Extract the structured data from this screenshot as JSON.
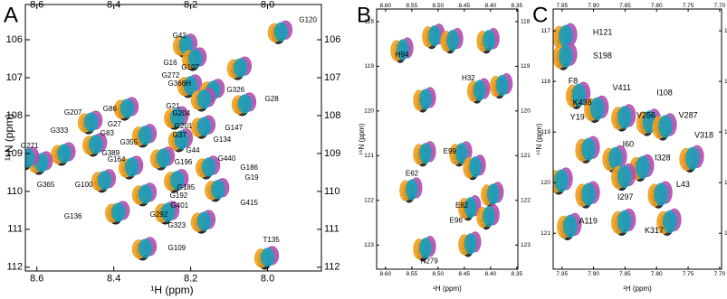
{
  "chart_data": [
    {
      "type": "scatter",
      "panel": "A",
      "x_label": "¹H (ppm)",
      "y_label": "¹⁵N (ppm)",
      "xlim": [
        8.63,
        7.86
      ],
      "ylim": [
        112.1,
        105.07
      ],
      "x_inverted": true,
      "y_inverted": true,
      "xticks": [
        8.6,
        8.4,
        8.2,
        {
          "value": 8,
          "label": "8.0"
        }
      ],
      "yticks": [
        106,
        107,
        108,
        109,
        110,
        111,
        112
      ],
      "colors": [
        "#1a1a1a",
        "#f0a020",
        "#b050b0",
        "#1aa0b8"
      ],
      "peaks": {
        "x": [
          7.965,
          8.212,
          8.188,
          8.071,
          8.2,
          8.141,
          8.059,
          8.165,
          8.365,
          8.459,
          8.235,
          8.165,
          8.224,
          8.318,
          8.447,
          8.529,
          8.588,
          8.271,
          8.353,
          8.153,
          8.424,
          8.235,
          8.129,
          8.318,
          8.388,
          8.259,
          8.165,
          8.318,
          8.0,
          8.624
        ],
        "y": [
          105.79,
          106.14,
          106.5,
          106.74,
          107.21,
          107.33,
          107.69,
          107.57,
          107.81,
          108.17,
          108.05,
          108.29,
          108.64,
          108.52,
          108.76,
          109.0,
          109.24,
          109.12,
          109.36,
          109.36,
          109.71,
          109.71,
          109.95,
          110.07,
          110.55,
          110.55,
          110.79,
          111.5,
          111.74,
          109.12
        ]
      },
      "annotations": [
        {
          "text": "G120",
          "x": 7.918,
          "y": 105.48
        },
        {
          "text": "G42",
          "x": 8.247,
          "y": 105.9
        },
        {
          "text": "G16",
          "x": 8.271,
          "y": 106.62
        },
        {
          "text": "G107",
          "x": 8.224,
          "y": 106.74
        },
        {
          "text": "G272",
          "x": 8.275,
          "y": 106.95
        },
        {
          "text": "G366H",
          "x": 8.259,
          "y": 107.17
        },
        {
          "text": "G326",
          "x": 8.106,
          "y": 107.33
        },
        {
          "text": "G28",
          "x": 8.007,
          "y": 107.57
        },
        {
          "text": "G86",
          "x": 8.428,
          "y": 107.83
        },
        {
          "text": "G21",
          "x": 8.264,
          "y": 107.76
        },
        {
          "text": "G204",
          "x": 8.247,
          "y": 107.95
        },
        {
          "text": "G207",
          "x": 8.529,
          "y": 107.93
        },
        {
          "text": "G27",
          "x": 8.416,
          "y": 108.24
        },
        {
          "text": "G201",
          "x": 8.242,
          "y": 108.29
        },
        {
          "text": "G147",
          "x": 8.111,
          "y": 108.33
        },
        {
          "text": "G83",
          "x": 8.435,
          "y": 108.48
        },
        {
          "text": "G134",
          "x": 8.141,
          "y": 108.64
        },
        {
          "text": "G333",
          "x": 8.565,
          "y": 108.4
        },
        {
          "text": "G37",
          "x": 8.247,
          "y": 108.52
        },
        {
          "text": "G355",
          "x": 8.384,
          "y": 108.71
        },
        {
          "text": "G271",
          "x": 8.642,
          "y": 108.81
        },
        {
          "text": "G44",
          "x": 8.212,
          "y": 108.93
        },
        {
          "text": "G389",
          "x": 8.431,
          "y": 109.0
        },
        {
          "text": "G164",
          "x": 8.416,
          "y": 109.17
        },
        {
          "text": "G196",
          "x": 8.242,
          "y": 109.24
        },
        {
          "text": "G440",
          "x": 8.129,
          "y": 109.14
        },
        {
          "text": "G186",
          "x": 8.071,
          "y": 109.38
        },
        {
          "text": "G365",
          "x": 8.6,
          "y": 109.83
        },
        {
          "text": "G100",
          "x": 8.501,
          "y": 109.83
        },
        {
          "text": "G185",
          "x": 8.235,
          "y": 109.9
        },
        {
          "text": "G19",
          "x": 8.059,
          "y": 109.64
        },
        {
          "text": "G192",
          "x": 8.254,
          "y": 110.12
        },
        {
          "text": "G401",
          "x": 8.252,
          "y": 110.38
        },
        {
          "text": "G415",
          "x": 8.071,
          "y": 110.31
        },
        {
          "text": "G136",
          "x": 8.529,
          "y": 110.67
        },
        {
          "text": "G292",
          "x": 8.306,
          "y": 110.62
        },
        {
          "text": "G323",
          "x": 8.259,
          "y": 110.9
        },
        {
          "text": "G109",
          "x": 8.259,
          "y": 111.5
        },
        {
          "text": "T135",
          "x": 8.012,
          "y": 111.29
        }
      ]
    },
    {
      "type": "scatter",
      "panel": "B",
      "x_label": "¹H (ppm)",
      "y_label": "¹⁵N (ppm)",
      "xlim": [
        8.617,
        8.348
      ],
      "ylim": [
        123.54,
        117.72
      ],
      "x_inverted": true,
      "y_inverted": true,
      "xticks": [
        {
          "value": 8.6,
          "label": "8.60"
        },
        8.55,
        {
          "value": 8.5,
          "label": "8.50"
        },
        8.45,
        {
          "value": 8.4,
          "label": "8.40"
        },
        8.35
      ],
      "yticks": [
        118,
        119,
        120,
        121,
        122,
        123
      ],
      "colors": [
        "#1a1a1a",
        "#f0a020",
        "#b050b0",
        "#1aa0b8"
      ],
      "peaks": {
        "x": [
          8.507,
          8.472,
          8.567,
          8.403,
          8.524,
          8.421,
          8.378,
          8.455,
          8.524,
          8.55,
          8.429,
          8.395,
          8.438,
          8.403,
          8.438,
          8.524
        ],
        "y": [
          118.32,
          118.42,
          118.63,
          118.42,
          119.74,
          119.54,
          119.43,
          120.95,
          120.95,
          121.76,
          121.25,
          121.86,
          122.16,
          122.36,
          122.97,
          123.07
        ]
      },
      "annotations": [
        {
          "text": "H94",
          "x": 8.581,
          "y": 118.75
        },
        {
          "text": "H32",
          "x": 8.455,
          "y": 119.27
        },
        {
          "text": "E99",
          "x": 8.49,
          "y": 120.91
        },
        {
          "text": "E62",
          "x": 8.562,
          "y": 121.41
        },
        {
          "text": "E82",
          "x": 8.467,
          "y": 122.12
        },
        {
          "text": "E96",
          "x": 8.478,
          "y": 122.46
        },
        {
          "text": "N279",
          "x": 8.533,
          "y": 123.37
        }
      ]
    },
    {
      "type": "scatter",
      "panel": "C",
      "x_label": "¹H (ppm)",
      "y_label": "¹⁵N (ppm)",
      "xlim": [
        7.964,
        7.697
      ],
      "ylim": [
        121.71,
        116.57
      ],
      "x_inverted": true,
      "y_inverted": true,
      "xticks": [
        7.95,
        {
          "value": 7.9,
          "label": "7.90"
        },
        7.85,
        {
          "value": 7.8,
          "label": "7.80"
        },
        7.75,
        {
          "value": 7.7,
          "label": "7.70"
        }
      ],
      "yticks": [
        117,
        118,
        119,
        120,
        121
      ],
      "colors": [
        "#1a1a1a",
        "#f0a020",
        "#b050b0",
        "#1aa0b8"
      ],
      "peaks": {
        "x": [
          7.944,
          7.944,
          7.923,
          7.894,
          7.851,
          7.811,
          7.786,
          7.743,
          7.908,
          7.865,
          7.822,
          7.951,
          7.908,
          7.851,
          7.793,
          7.937,
          7.851,
          7.779
        ],
        "y": [
          117.11,
          117.5,
          118.27,
          118.54,
          118.71,
          118.8,
          118.89,
          119.52,
          119.34,
          119.52,
          119.7,
          119.96,
          120.23,
          119.88,
          120.23,
          120.86,
          120.77,
          120.77
        ]
      },
      "annotations": [
        {
          "text": "H121",
          "x": 7.901,
          "y": 117.04
        },
        {
          "text": "S198",
          "x": 7.901,
          "y": 117.5
        },
        {
          "text": "F8",
          "x": 7.94,
          "y": 118.0
        },
        {
          "text": "V411",
          "x": 7.87,
          "y": 118.13
        },
        {
          "text": "I108",
          "x": 7.8,
          "y": 118.23
        },
        {
          "text": "K438",
          "x": 7.933,
          "y": 118.43
        },
        {
          "text": "Y19",
          "x": 7.937,
          "y": 118.71
        },
        {
          "text": "V256",
          "x": 7.832,
          "y": 118.68
        },
        {
          "text": "V287",
          "x": 7.765,
          "y": 118.68
        },
        {
          "text": "V318",
          "x": 7.74,
          "y": 119.07
        },
        {
          "text": "I60",
          "x": 7.854,
          "y": 119.25
        },
        {
          "text": "I328",
          "x": 7.803,
          "y": 119.52
        },
        {
          "text": "I297",
          "x": 7.862,
          "y": 120.29
        },
        {
          "text": "L43",
          "x": 7.769,
          "y": 120.04
        },
        {
          "text": "A119",
          "x": 7.923,
          "y": 120.77
        },
        {
          "text": "K317",
          "x": 7.819,
          "y": 120.95
        }
      ]
    }
  ]
}
